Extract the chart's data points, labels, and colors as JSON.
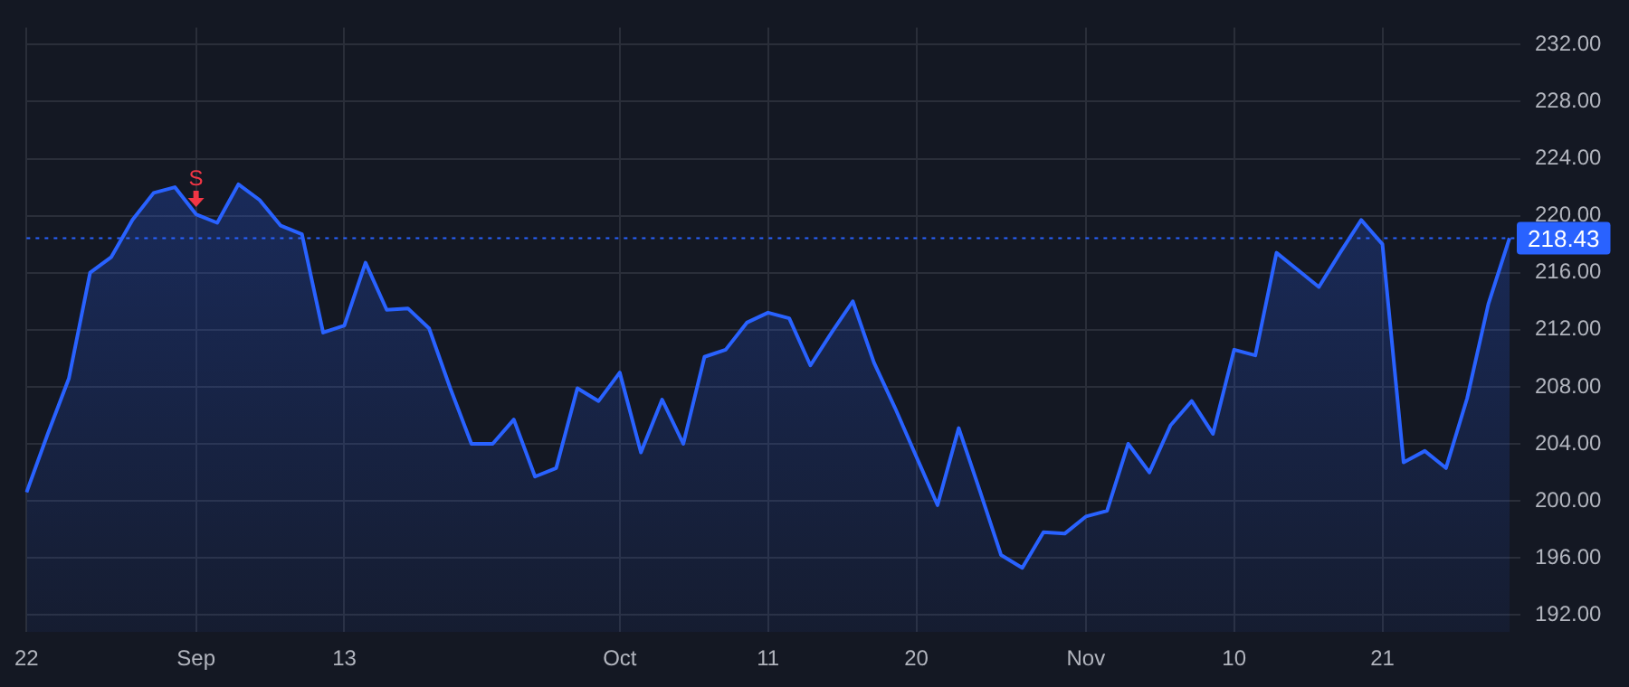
{
  "chart_data": {
    "type": "area",
    "categories": [
      "22",
      null,
      null,
      null,
      null,
      null,
      null,
      null,
      "Sep",
      null,
      null,
      null,
      null,
      null,
      null,
      "13",
      null,
      null,
      null,
      null,
      null,
      null,
      null,
      null,
      null,
      null,
      null,
      null,
      "Oct",
      null,
      null,
      null,
      null,
      null,
      null,
      "11",
      null,
      null,
      null,
      null,
      null,
      null,
      "20",
      null,
      null,
      null,
      null,
      null,
      null,
      null,
      "Nov",
      null,
      null,
      null,
      null,
      null,
      null,
      "10",
      null,
      null,
      null,
      null,
      null,
      null,
      "21",
      null,
      null,
      null,
      null,
      null,
      null
    ],
    "series": [
      {
        "color": "#2962ff",
        "values": [
          200.6,
          204.7,
          208.6,
          216.0,
          217.1,
          219.7,
          221.6,
          222.0,
          220.1,
          219.5,
          222.2,
          221.1,
          219.3,
          218.7,
          211.8,
          212.3,
          216.7,
          213.4,
          213.5,
          212.1,
          207.9,
          204.0,
          204.0,
          205.7,
          201.7,
          202.3,
          207.9,
          207.0,
          209.0,
          203.4,
          207.1,
          204.0,
          210.1,
          210.6,
          212.5,
          213.2,
          212.8,
          209.5,
          211.8,
          214.0,
          209.7,
          206.5,
          203.1,
          199.7,
          205.1,
          200.7,
          196.2,
          195.3,
          197.8,
          197.7,
          198.9,
          199.3,
          204.0,
          202.0,
          205.3,
          207.0,
          204.7,
          210.6,
          210.2,
          217.4,
          216.2,
          215.0,
          217.4,
          219.7,
          218.0,
          202.7,
          203.5,
          202.3,
          207.2,
          213.8,
          218.43
        ]
      }
    ],
    "ylim": [
      190.8,
      233.2
    ],
    "yticks": [
      {
        "value": 192,
        "label": "192.00"
      },
      {
        "value": 196,
        "label": "196.00"
      },
      {
        "value": 200,
        "label": "200.00"
      },
      {
        "value": 204,
        "label": "204.00"
      },
      {
        "value": 208,
        "label": "208.00"
      },
      {
        "value": 212,
        "label": "212.00"
      },
      {
        "value": 216,
        "label": "216.00"
      },
      {
        "value": 220,
        "label": "220.00"
      },
      {
        "value": 224,
        "label": "224.00"
      },
      {
        "value": 228,
        "label": "228.00"
      },
      {
        "value": 232,
        "label": "232.00"
      }
    ],
    "ref_lines": [
      {
        "axis": "y",
        "value": 218.43,
        "label": "218.43",
        "color": "#2962ff",
        "line_style": "dotted"
      }
    ],
    "annotations": [
      {
        "text": "S",
        "x": "Sep",
        "y": 220.1
      }
    ],
    "grid": true,
    "legend": false,
    "marker": "none",
    "line_style": "solid"
  }
}
